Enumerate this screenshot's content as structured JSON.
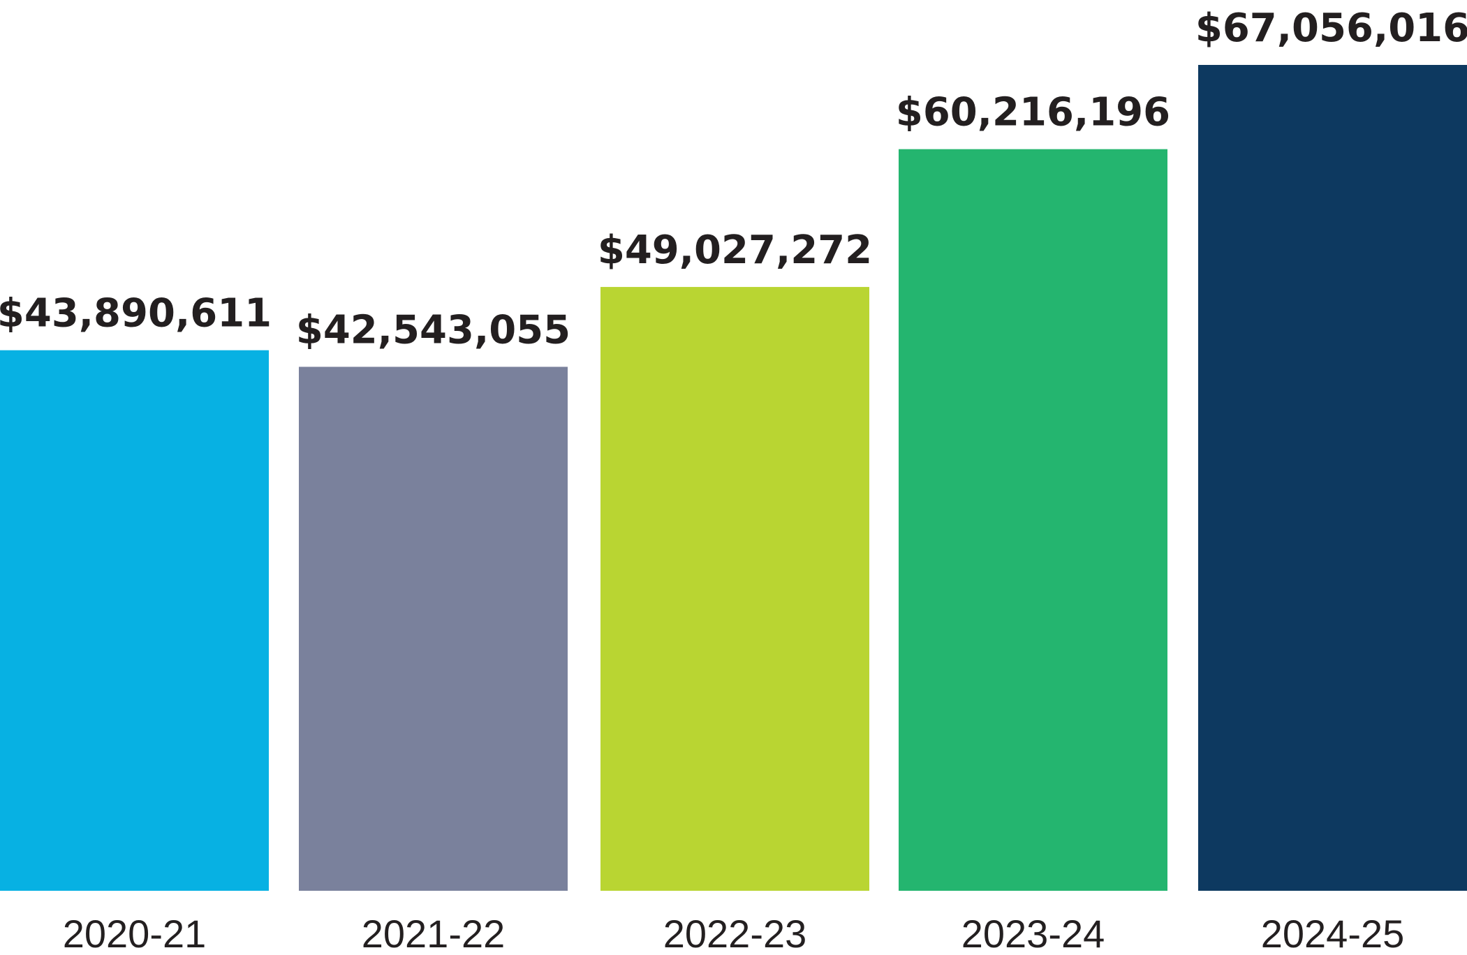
{
  "chart_data": {
    "type": "bar",
    "title": "",
    "xlabel": "",
    "ylabel": "",
    "categories": [
      "2020-21",
      "2021-22",
      "2022-23",
      "2023-24",
      "2024-25"
    ],
    "values": [
      43890611,
      42543055,
      49027272,
      60216196,
      67056016
    ],
    "value_labels": [
      "$43,890,611",
      "$42,543,055",
      "$49,027,272",
      "$60,216,196",
      "$67,056,016"
    ],
    "colors": [
      "#07b1e3",
      "#7a819c",
      "#b9d532",
      "#24b56f",
      "#0d3960"
    ],
    "grid": false,
    "legend": "none"
  }
}
